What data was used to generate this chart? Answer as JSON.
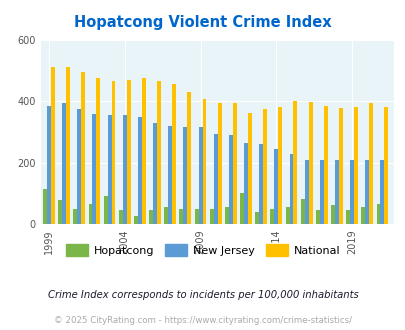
{
  "title": "Hopatcong Violent Crime Index",
  "title_color": "#0066cc",
  "years": [
    1999,
    2000,
    2001,
    2002,
    2003,
    2004,
    2005,
    2006,
    2007,
    2008,
    2009,
    2010,
    2011,
    2012,
    2013,
    2014,
    2015,
    2016,
    2017,
    2018,
    2019,
    2020,
    2021
  ],
  "hopatcong": [
    115,
    78,
    50,
    67,
    92,
    47,
    27,
    47,
    55,
    50,
    50,
    50,
    55,
    103,
    40,
    50,
    55,
    82,
    47,
    63,
    47,
    55,
    65
  ],
  "new_jersey": [
    385,
    395,
    375,
    360,
    355,
    355,
    350,
    330,
    320,
    315,
    315,
    295,
    290,
    265,
    260,
    245,
    230,
    210,
    210,
    210,
    210,
    210,
    210
  ],
  "national": [
    510,
    510,
    495,
    475,
    465,
    470,
    475,
    465,
    455,
    430,
    407,
    393,
    393,
    363,
    375,
    382,
    400,
    397,
    383,
    378,
    380,
    395,
    380
  ],
  "hopatcong_color": "#7ab648",
  "nj_color": "#5b9bd5",
  "national_color": "#ffc000",
  "bg_color": "#e8f4f8",
  "ylim": [
    0,
    600
  ],
  "yticks": [
    0,
    200,
    400,
    600
  ],
  "legend_labels": [
    "Hopatcong",
    "New Jersey",
    "National"
  ],
  "footnote": "Crime Index corresponds to incidents per 100,000 inhabitants",
  "copyright": "© 2025 CityRating.com - https://www.cityrating.com/crime-statistics/",
  "bar_width": 0.26,
  "x_tick_years": [
    1999,
    2004,
    2009,
    2014,
    2019
  ]
}
